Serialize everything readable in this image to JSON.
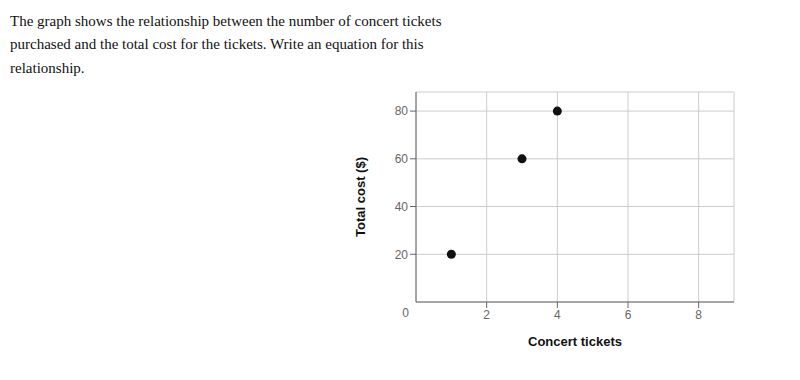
{
  "chart_data": {
    "type": "scatter",
    "title": "The graph shows the relationship between the number of concert tickets\npurchased and the total cost for the tickets. Write an equation for this\nrelationship.",
    "x": [
      1,
      3,
      4
    ],
    "values": [
      20,
      60,
      80
    ],
    "xlabel": "Concert tickets",
    "ylabel": "Total cost ($)",
    "xlim": [
      0,
      9
    ],
    "ylim": [
      0,
      88
    ],
    "xticks": [
      2,
      4,
      6,
      8
    ],
    "yticks": [
      20,
      40,
      60,
      80
    ],
    "grid": true,
    "color": "#111111",
    "annotations": [
      "0"
    ]
  }
}
